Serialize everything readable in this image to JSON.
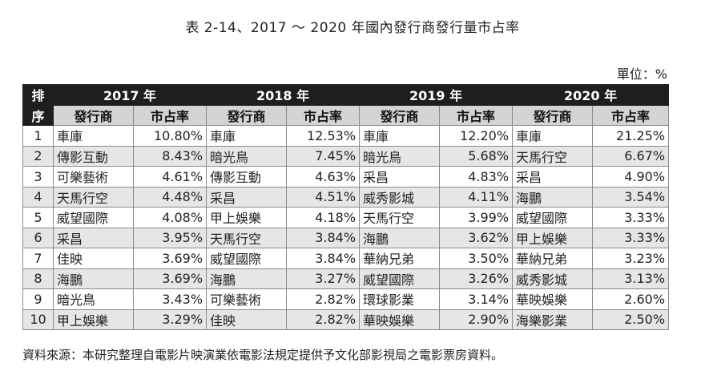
{
  "title": "表 2-14、2017 ～ 2020 年國內發行商發行量市占率",
  "unit": "單位：%",
  "header": {
    "rank_top": "排",
    "rank_bottom": "序",
    "years": [
      "2017 年",
      "2018 年",
      "2019 年",
      "2020 年"
    ],
    "col_distributor": "發行商",
    "col_share": "市占率"
  },
  "rows": [
    {
      "rank": "1",
      "c": [
        [
          "車庫",
          "10.80%"
        ],
        [
          "車庫",
          "12.53%"
        ],
        [
          "車庫",
          "12.20%"
        ],
        [
          "車庫",
          "21.25%"
        ]
      ]
    },
    {
      "rank": "2",
      "c": [
        [
          "傳影互動",
          "8.43%"
        ],
        [
          "暗光鳥",
          "7.45%"
        ],
        [
          "暗光鳥",
          "5.68%"
        ],
        [
          "天馬行空",
          "6.67%"
        ]
      ]
    },
    {
      "rank": "3",
      "c": [
        [
          "可樂藝術",
          "4.61%"
        ],
        [
          "傳影互動",
          "4.63%"
        ],
        [
          "采昌",
          "4.83%"
        ],
        [
          "采昌",
          "4.90%"
        ]
      ]
    },
    {
      "rank": "4",
      "c": [
        [
          "天馬行空",
          "4.48%"
        ],
        [
          "采昌",
          "4.51%"
        ],
        [
          "威秀影城",
          "4.11%"
        ],
        [
          "海鵬",
          "3.54%"
        ]
      ]
    },
    {
      "rank": "5",
      "c": [
        [
          "威望國際",
          "4.08%"
        ],
        [
          "甲上娛樂",
          "4.18%"
        ],
        [
          "天馬行空",
          "3.99%"
        ],
        [
          "威望國際",
          "3.33%"
        ]
      ]
    },
    {
      "rank": "6",
      "c": [
        [
          "采昌",
          "3.95%"
        ],
        [
          "天馬行空",
          "3.84%"
        ],
        [
          "海鵬",
          "3.62%"
        ],
        [
          "甲上娛樂",
          "3.33%"
        ]
      ]
    },
    {
      "rank": "7",
      "c": [
        [
          "佳映",
          "3.69%"
        ],
        [
          "威望國際",
          "3.84%"
        ],
        [
          "華納兄弟",
          "3.50%"
        ],
        [
          "華納兄弟",
          "3.23%"
        ]
      ]
    },
    {
      "rank": "8",
      "c": [
        [
          "海鵬",
          "3.69%"
        ],
        [
          "海鵬",
          "3.27%"
        ],
        [
          "威望國際",
          "3.26%"
        ],
        [
          "威秀影城",
          "3.13%"
        ]
      ]
    },
    {
      "rank": "9",
      "c": [
        [
          "暗光鳥",
          "3.43%"
        ],
        [
          "可樂藝術",
          "2.82%"
        ],
        [
          "環球影業",
          "3.14%"
        ],
        [
          "華映娛樂",
          "2.60%"
        ]
      ]
    },
    {
      "rank": "10",
      "c": [
        [
          "甲上娛樂",
          "3.29%"
        ],
        [
          "佳映",
          "2.82%"
        ],
        [
          "華映娛樂",
          "2.90%"
        ],
        [
          "海樂影業",
          "2.50%"
        ]
      ]
    }
  ],
  "source": "資料來源：本研究整理自電影片映演業依電影法規定提供予文化部影視局之電影票房資料。"
}
